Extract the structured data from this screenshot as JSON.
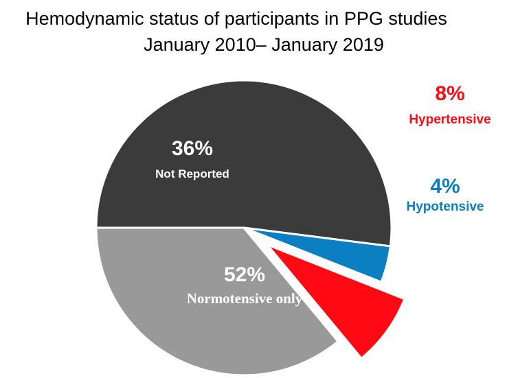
{
  "title_line1": "Hemodynamic status of participants in PPG studies",
  "title_line2": "January 2010– January 2019",
  "chart_data": {
    "type": "pie",
    "title": "Hemodynamic status of participants in PPG studies January 2010– January 2019",
    "start_angle_deg": 180,
    "slices": [
      {
        "label": "Normotensive only",
        "value": 52,
        "percent_label": "52%",
        "color": "#3b3b3b",
        "exploded": false,
        "label_position": "inside"
      },
      {
        "label": "Hypotensive",
        "value": 4,
        "percent_label": "4%",
        "color": "#0b7fc2",
        "exploded": false,
        "label_position": "outside"
      },
      {
        "label": "Hypertensive",
        "value": 8,
        "percent_label": "8%",
        "color": "#ff0a14",
        "exploded": true,
        "label_position": "outside"
      },
      {
        "label": "Not Reported",
        "value": 36,
        "percent_label": "36%",
        "color": "#999999",
        "exploded": false,
        "label_position": "inside"
      }
    ]
  }
}
